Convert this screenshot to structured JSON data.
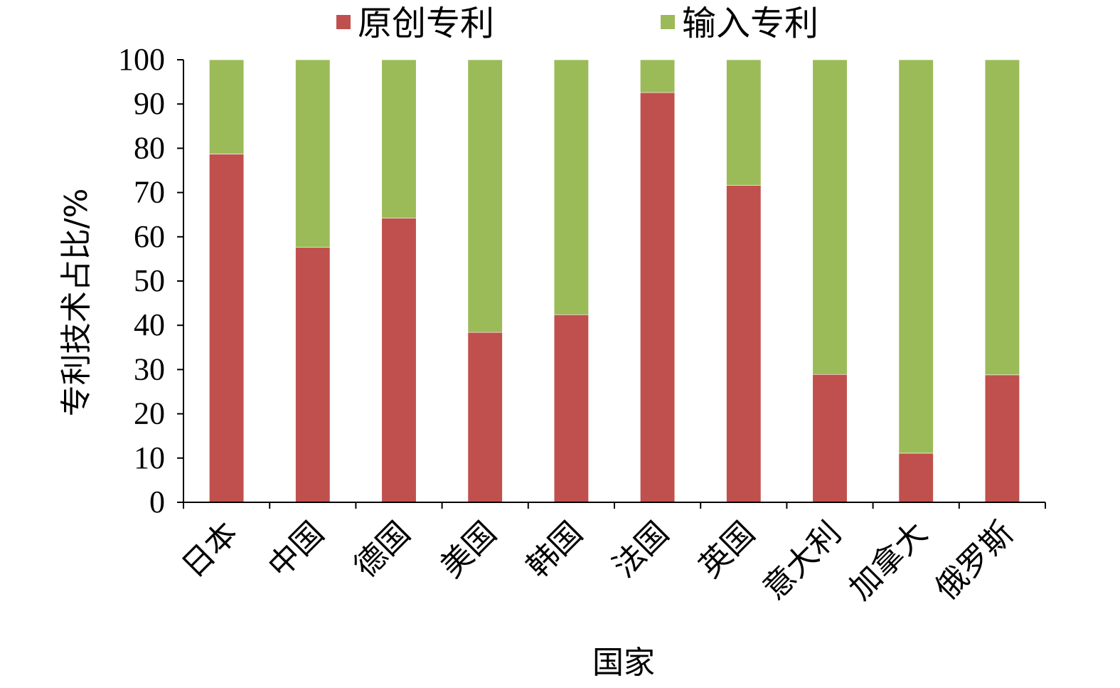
{
  "chart_data": {
    "type": "bar",
    "stacked": true,
    "title": "",
    "xlabel": "国家",
    "ylabel": "专利技术占比/%",
    "ylim": [
      0,
      100
    ],
    "yticks": [
      "0",
      "10",
      "20",
      "30",
      "40",
      "50",
      "60",
      "70",
      "80",
      "90",
      "100"
    ],
    "grid": false,
    "legend_position": "top",
    "categories": [
      "日本",
      "中国",
      "德国",
      "美国",
      "韩国",
      "法国",
      "英国",
      "意大利",
      "加拿大",
      "俄罗斯"
    ],
    "series": [
      {
        "name": "原创专利",
        "color": "#c0504d",
        "values": [
          78.7,
          57.6,
          64.2,
          38.4,
          42.4,
          92.6,
          71.6,
          28.9,
          11.1,
          28.8
        ]
      },
      {
        "name": "输入专利",
        "color": "#9bbb59",
        "values": [
          21.3,
          42.4,
          35.8,
          61.6,
          57.6,
          7.4,
          28.4,
          71.1,
          88.9,
          71.2
        ]
      }
    ]
  }
}
